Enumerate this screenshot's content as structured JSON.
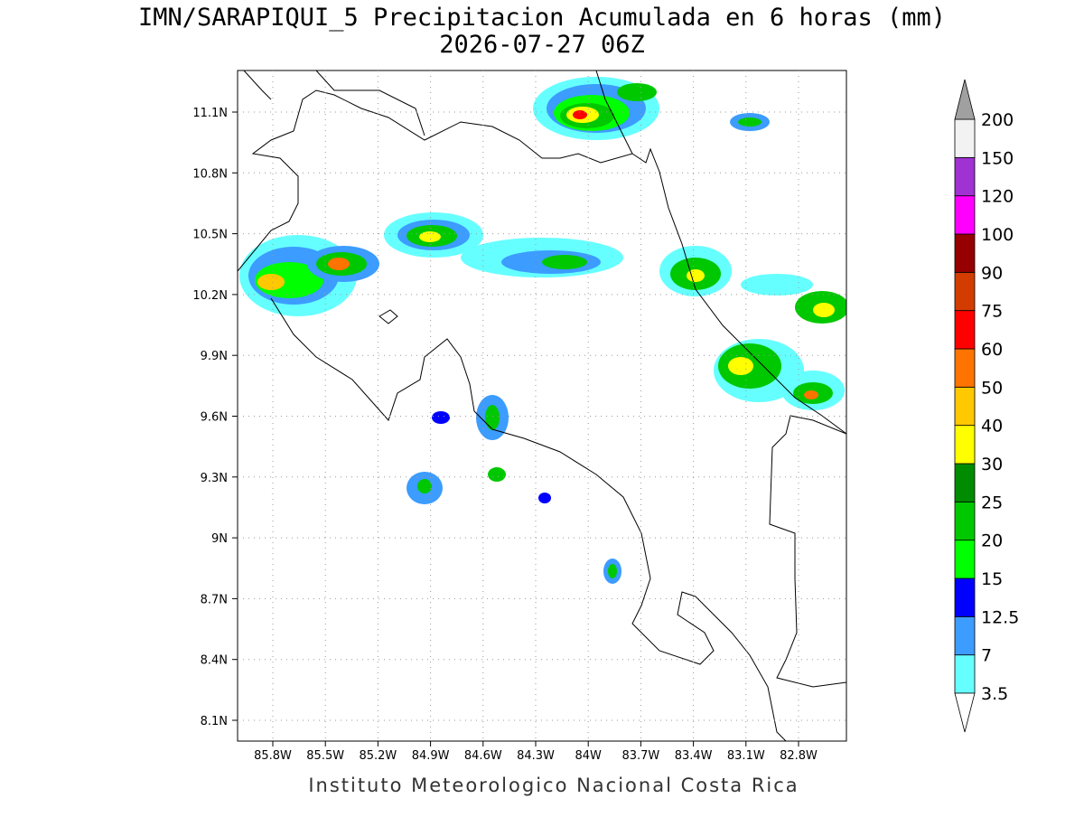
{
  "title": "IMN/SARAPIQUI_5 Precipitacion Acumulada en 6 horas (mm)",
  "subtitle": "2026-07-27 06Z",
  "map": {
    "lat_labels": [
      "11.1N",
      "10.8N",
      "10.5N",
      "10.2N",
      "9.9N",
      "9.6N",
      "9.3N",
      "9N",
      "8.7N",
      "8.4N",
      "8.1N"
    ],
    "lon_labels": [
      "85.8W",
      "85.5W",
      "85.2W",
      "84.9W",
      "84.6W",
      "84.3W",
      "84W",
      "83.7W",
      "83.4W",
      "83.1W",
      "82.8W"
    ]
  },
  "colorbar": {
    "labels": [
      "3.5",
      "7",
      "12.5",
      "15",
      "20",
      "25",
      "30",
      "40",
      "50",
      "60",
      "75",
      "90",
      "100",
      "120",
      "150",
      "200"
    ],
    "colors": [
      "#66ffff",
      "#3c9cff",
      "#0000ff",
      "#00ff00",
      "#00c800",
      "#008c00",
      "#ffff00",
      "#ffc800",
      "#ff7300",
      "#ff0000",
      "#d23c00",
      "#960000",
      "#ff00ff",
      "#a032d2",
      "#f2f2f2"
    ],
    "over_color": "#a0a0a0",
    "under_color": "#ffffff"
  },
  "footer": "Instituto Meteorologico Nacional Costa Rica"
}
